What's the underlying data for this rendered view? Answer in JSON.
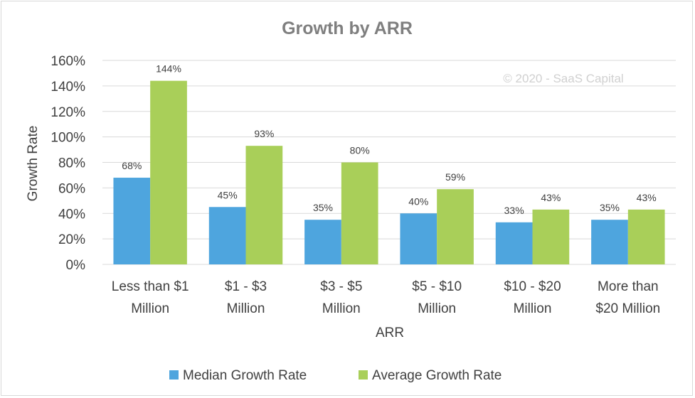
{
  "chart_data": {
    "type": "bar",
    "title": "Growth by ARR",
    "xlabel": "ARR",
    "ylabel": "Growth Rate",
    "watermark": "© 2020 - SaaS Capital",
    "ylim": [
      0,
      160
    ],
    "yticks": [
      "0%",
      "20%",
      "40%",
      "60%",
      "80%",
      "100%",
      "120%",
      "140%",
      "160%"
    ],
    "grid": true,
    "legend_position": "bottom",
    "categories": [
      [
        "Less than $1",
        "Million"
      ],
      [
        "$1 - $3",
        "Million"
      ],
      [
        "$3 - $5",
        "Million"
      ],
      [
        "$5 - $10",
        "Million"
      ],
      [
        "$10 - $20",
        "Million"
      ],
      [
        "More than",
        "$20 Million"
      ]
    ],
    "series": [
      {
        "name": "Median Growth Rate",
        "color": "#4ea5de",
        "values": [
          68,
          45,
          35,
          40,
          33,
          35
        ],
        "labels": [
          "68%",
          "45%",
          "35%",
          "40%",
          "33%",
          "35%"
        ]
      },
      {
        "name": "Average Growth Rate",
        "color": "#a9cf59",
        "values": [
          144,
          93,
          80,
          59,
          43,
          43
        ],
        "labels": [
          "144%",
          "93%",
          "80%",
          "59%",
          "43%",
          "43%"
        ]
      }
    ]
  }
}
